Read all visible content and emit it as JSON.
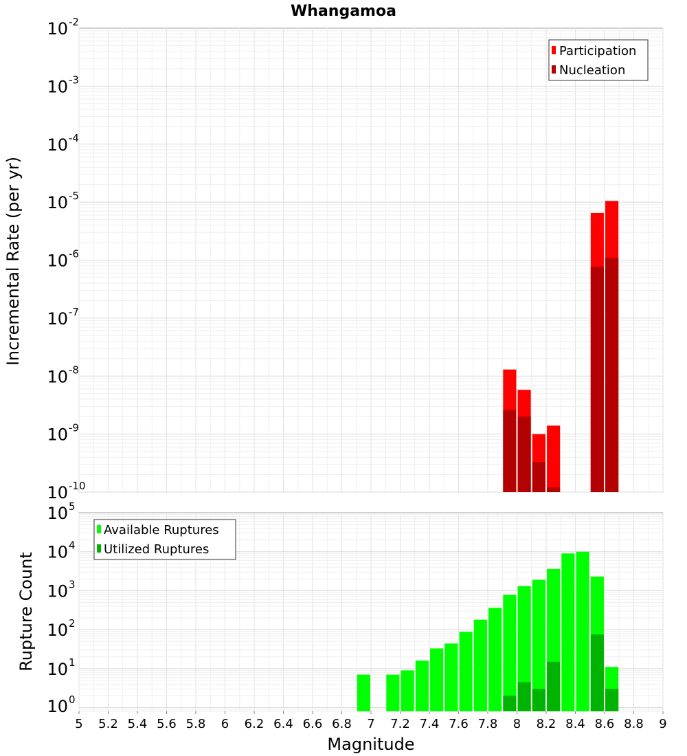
{
  "chart_data": [
    {
      "type": "bar",
      "title": "Whangamoa",
      "xlabel": "",
      "ylabel": "Incremental Rate (per yr)",
      "yscale": "log",
      "ylim": [
        1e-10,
        0.01
      ],
      "xlim": [
        5,
        9
      ],
      "legend_position": "top-right",
      "y_ticks": [
        {
          "base": "10",
          "exp": "-2"
        },
        {
          "base": "10",
          "exp": "-3"
        },
        {
          "base": "10",
          "exp": "-4"
        },
        {
          "base": "10",
          "exp": "-5"
        },
        {
          "base": "10",
          "exp": "-6"
        },
        {
          "base": "10",
          "exp": "-7"
        },
        {
          "base": "10",
          "exp": "-8"
        },
        {
          "base": "10",
          "exp": "-9"
        },
        {
          "base": "10",
          "exp": "-10"
        }
      ],
      "x": [
        7.95,
        8.05,
        8.15,
        8.25,
        8.55,
        8.65
      ],
      "series": [
        {
          "name": "Participation",
          "color": "#ff0000",
          "values": [
            1.3e-08,
            5.8e-09,
            1e-09,
            1.4e-09,
            6.5e-06,
            1.05e-05
          ]
        },
        {
          "name": "Nucleation",
          "color": "#b30000",
          "values": [
            2.6e-09,
            2e-09,
            3.3e-10,
            1.2e-10,
            7.7e-07,
            1.1e-06
          ]
        }
      ]
    },
    {
      "type": "bar",
      "title": "",
      "xlabel": "Magnitude",
      "ylabel": "Rupture Count",
      "yscale": "log",
      "ylim": [
        0.8,
        100000.0
      ],
      "xlim": [
        5,
        9
      ],
      "legend_position": "top-left",
      "x_ticks": [
        "5",
        "5.2",
        "5.4",
        "5.6",
        "5.8",
        "6",
        "6.2",
        "6.4",
        "6.6",
        "6.8",
        "7",
        "7.2",
        "7.4",
        "7.6",
        "7.8",
        "8",
        "8.2",
        "8.4",
        "8.6",
        "8.8",
        "9"
      ],
      "y_ticks": [
        {
          "base": "10",
          "exp": "5"
        },
        {
          "base": "10",
          "exp": "4"
        },
        {
          "base": "10",
          "exp": "3"
        },
        {
          "base": "10",
          "exp": "2"
        },
        {
          "base": "10",
          "exp": "1"
        },
        {
          "base": "10",
          "exp": "0"
        }
      ],
      "x": [
        6.95,
        7.15,
        7.25,
        7.35,
        7.45,
        7.55,
        7.65,
        7.75,
        7.85,
        7.95,
        8.05,
        8.15,
        8.25,
        8.35,
        8.45,
        8.55,
        8.65
      ],
      "series": [
        {
          "name": "Available Ruptures",
          "color": "#00ff00",
          "values": [
            7,
            7,
            9,
            16,
            33,
            44,
            88,
            180,
            360,
            780,
            1300,
            1900,
            3600,
            9000,
            10000,
            2300,
            11
          ]
        },
        {
          "name": "Utilized Ruptures",
          "color": "#00b300",
          "x": [
            7.95,
            8.05,
            8.15,
            8.25,
            8.55,
            8.65
          ],
          "values": [
            2,
            4.5,
            3,
            15,
            75,
            3
          ]
        }
      ]
    }
  ]
}
